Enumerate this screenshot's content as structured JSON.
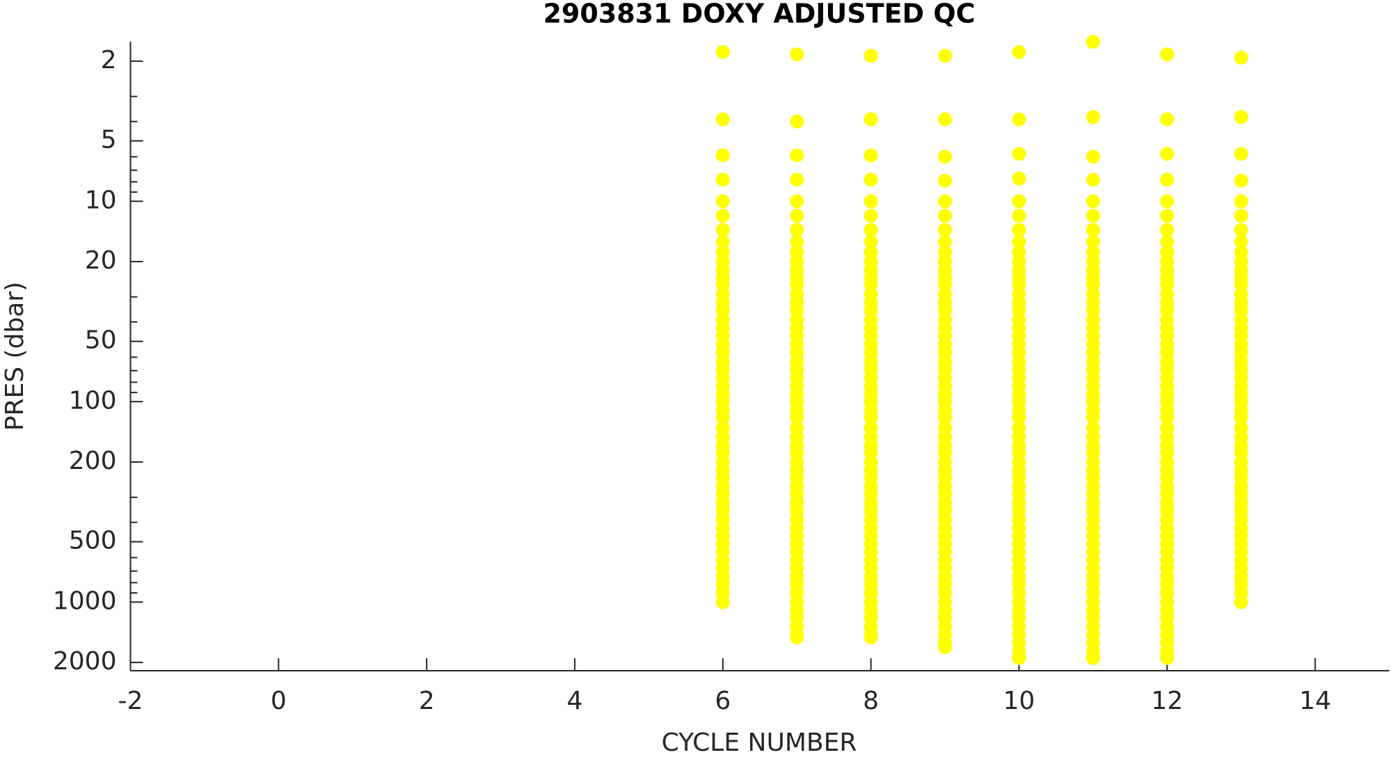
{
  "chart_data": {
    "type": "scatter",
    "title": "2903831  DOXY ADJUSTED QC",
    "x_label": "CYCLE NUMBER",
    "y_label": "PRES (dbar)",
    "xlim": [
      -2,
      15
    ],
    "xticks": [
      -2,
      0,
      2,
      4,
      6,
      8,
      10,
      12,
      14
    ],
    "ylim": [
      1.6,
      2200
    ],
    "y_scale": "log",
    "y_reversed": true,
    "yticks": [
      2,
      5,
      10,
      20,
      50,
      100,
      200,
      500,
      1000,
      2000
    ],
    "yminorticks": [
      3,
      4,
      6,
      7,
      8,
      9,
      30,
      40,
      60,
      70,
      80,
      90,
      300,
      400,
      600,
      700,
      800,
      900
    ],
    "color": "#ffff00",
    "series": [
      {
        "x": 6,
        "values": [
          1.8,
          3.9,
          5.9,
          7.8,
          10,
          11.8,
          13.9,
          15.9,
          18,
          20,
          22,
          24,
          26,
          29,
          32,
          35,
          39,
          43,
          47,
          52,
          57,
          63,
          69,
          76,
          84,
          92,
          100,
          110,
          120,
          135,
          150,
          165,
          180,
          200,
          220,
          240,
          265,
          290,
          320,
          350,
          385,
          425,
          465,
          510,
          560,
          620,
          680,
          750,
          820,
          900,
          1000
        ]
      },
      {
        "x": 7,
        "values": [
          1.85,
          4,
          5.9,
          7.8,
          10,
          11.8,
          13.9,
          15.9,
          18,
          20,
          22,
          24,
          26,
          29,
          32,
          35,
          39,
          43,
          47,
          52,
          57,
          63,
          69,
          76,
          84,
          92,
          100,
          110,
          120,
          135,
          150,
          165,
          180,
          200,
          220,
          240,
          265,
          290,
          320,
          350,
          385,
          425,
          465,
          510,
          560,
          620,
          680,
          750,
          820,
          900,
          1000,
          1100,
          1200,
          1330,
          1460,
          1500
        ]
      },
      {
        "x": 8,
        "values": [
          1.88,
          3.9,
          5.9,
          7.8,
          10,
          11.8,
          13.9,
          15.9,
          18,
          20,
          22,
          24,
          26,
          29,
          32,
          35,
          39,
          43,
          47,
          52,
          57,
          63,
          69,
          76,
          84,
          92,
          100,
          110,
          120,
          135,
          150,
          165,
          180,
          200,
          220,
          240,
          265,
          290,
          320,
          350,
          385,
          425,
          465,
          510,
          560,
          620,
          680,
          750,
          820,
          900,
          1000,
          1100,
          1200,
          1330,
          1460,
          1500
        ]
      },
      {
        "x": 9,
        "values": [
          1.88,
          3.9,
          6,
          7.9,
          10,
          11.8,
          13.9,
          15.9,
          18,
          20,
          22,
          24,
          26,
          29,
          32,
          35,
          39,
          43,
          47,
          52,
          57,
          63,
          69,
          76,
          84,
          92,
          100,
          110,
          120,
          135,
          150,
          165,
          180,
          200,
          220,
          240,
          265,
          290,
          320,
          350,
          385,
          425,
          465,
          510,
          560,
          620,
          680,
          750,
          820,
          900,
          1000,
          1100,
          1200,
          1330,
          1460,
          1600,
          1680
        ]
      },
      {
        "x": 10,
        "values": [
          1.8,
          3.9,
          5.8,
          7.7,
          10,
          11.8,
          13.9,
          15.9,
          18,
          20,
          22,
          24,
          26,
          29,
          32,
          35,
          39,
          43,
          47,
          52,
          57,
          63,
          69,
          76,
          84,
          92,
          100,
          110,
          120,
          135,
          150,
          165,
          180,
          200,
          220,
          240,
          265,
          290,
          320,
          350,
          385,
          425,
          465,
          510,
          560,
          620,
          680,
          750,
          820,
          900,
          1000,
          1100,
          1200,
          1330,
          1460,
          1600,
          1760,
          1900
        ]
      },
      {
        "x": 11,
        "values": [
          1.6,
          3.8,
          6,
          7.8,
          10,
          11.8,
          13.9,
          15.9,
          18,
          20,
          22,
          24,
          26,
          29,
          32,
          35,
          39,
          43,
          47,
          52,
          57,
          63,
          69,
          76,
          84,
          92,
          100,
          110,
          120,
          135,
          150,
          165,
          180,
          200,
          220,
          240,
          265,
          290,
          320,
          350,
          385,
          425,
          465,
          510,
          560,
          620,
          680,
          750,
          820,
          900,
          1000,
          1100,
          1200,
          1330,
          1460,
          1600,
          1760,
          1900
        ]
      },
      {
        "x": 12,
        "values": [
          1.85,
          3.9,
          5.8,
          7.8,
          10,
          11.8,
          13.9,
          15.9,
          18,
          20,
          22,
          24,
          26,
          29,
          32,
          35,
          39,
          43,
          47,
          52,
          57,
          63,
          69,
          76,
          84,
          92,
          100,
          110,
          120,
          135,
          150,
          165,
          180,
          200,
          220,
          240,
          265,
          290,
          320,
          350,
          385,
          425,
          465,
          510,
          560,
          620,
          680,
          750,
          820,
          900,
          1000,
          1100,
          1200,
          1330,
          1460,
          1600,
          1760,
          1900
        ]
      },
      {
        "x": 13,
        "values": [
          1.92,
          3.8,
          5.8,
          7.9,
          10,
          11.8,
          13.9,
          15.9,
          18,
          20,
          22,
          24,
          26,
          29,
          32,
          35,
          39,
          43,
          47,
          52,
          57,
          63,
          69,
          76,
          84,
          92,
          100,
          110,
          120,
          135,
          150,
          165,
          180,
          200,
          220,
          240,
          265,
          290,
          320,
          350,
          385,
          425,
          465,
          510,
          560,
          620,
          680,
          750,
          820,
          900,
          1000
        ]
      }
    ]
  }
}
